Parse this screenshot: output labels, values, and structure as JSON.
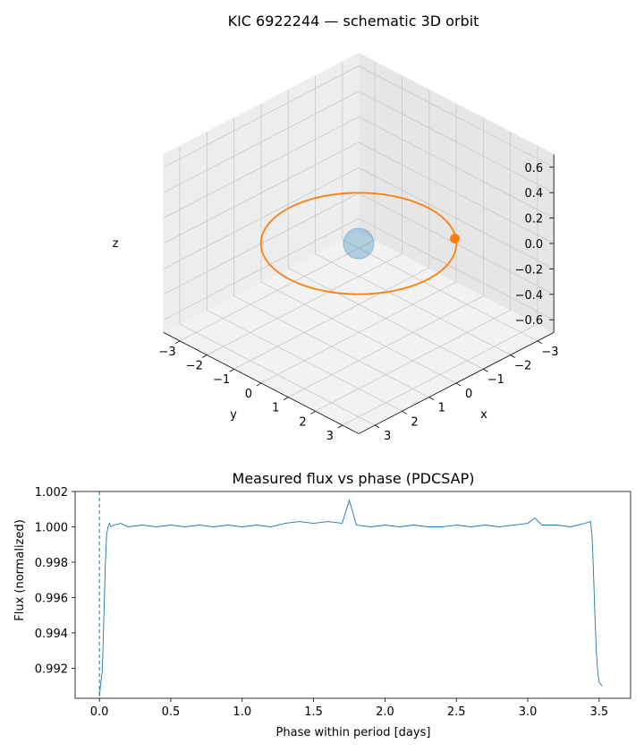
{
  "figure": {
    "title": "KIC 6922244 — schematic 3D orbit"
  },
  "chart_data": [
    {
      "type": "scatter",
      "kind": "3d-orbit",
      "title": "KIC 6922244 — schematic 3D orbit",
      "xlabel": "x",
      "ylabel": "y",
      "zlabel": "z",
      "xlim": [
        -3.6,
        3.6
      ],
      "ylim": [
        -3.6,
        3.6
      ],
      "zlim": [
        -0.7,
        0.7
      ],
      "xticks": [
        "−3",
        "−2",
        "−1",
        "0",
        "1",
        "2",
        "3"
      ],
      "yticks": [
        "−3",
        "−2",
        "−1",
        "0",
        "1",
        "2",
        "3"
      ],
      "zticks": [
        "−0.6",
        "−0.4",
        "−0.2",
        "0.0",
        "0.2",
        "0.4",
        "0.6"
      ],
      "xtick_values": [
        -3,
        -2,
        -1,
        0,
        1,
        2,
        3
      ],
      "ytick_values": [
        -3,
        -2,
        -1,
        0,
        1,
        2,
        3
      ],
      "ztick_values": [
        -0.6,
        -0.4,
        -0.2,
        0.0,
        0.2,
        0.4,
        0.6
      ],
      "orbit": {
        "radius": 2.55,
        "z": 0.0,
        "color": "#ff7f0e"
      },
      "planet": {
        "x": -1.95,
        "y": 1.6,
        "z": 0.0,
        "color": "#ff7f0e"
      },
      "star": {
        "x": 0,
        "y": 0,
        "z": 0,
        "radius": 0.38,
        "color": "#1f77b4"
      },
      "grid": true
    },
    {
      "type": "line",
      "title": "Measured flux vs phase (PDCSAP)",
      "xlabel": "Phase within period [days]",
      "ylabel": "Flux (normalized)",
      "xlim": [
        -0.17,
        3.72
      ],
      "ylim": [
        0.9903,
        1.002
      ],
      "xticks": [
        "0.0",
        "0.5",
        "1.0",
        "1.5",
        "2.0",
        "2.5",
        "3.0",
        "3.5"
      ],
      "xtick_values": [
        0.0,
        0.5,
        1.0,
        1.5,
        2.0,
        2.5,
        3.0,
        3.5
      ],
      "yticks": [
        "0.992",
        "0.994",
        "0.996",
        "0.998",
        "1.000",
        "1.002"
      ],
      "ytick_values": [
        0.992,
        0.994,
        0.996,
        0.998,
        1.0,
        1.002
      ],
      "series": [
        {
          "color": "#1f77b4",
          "x": [
            0.0,
            0.01,
            0.02,
            0.03,
            0.04,
            0.05,
            0.06,
            0.07,
            0.08,
            0.1,
            0.15,
            0.2,
            0.3,
            0.4,
            0.5,
            0.6,
            0.7,
            0.8,
            0.9,
            1.0,
            1.1,
            1.2,
            1.3,
            1.4,
            1.5,
            1.6,
            1.7,
            1.75,
            1.8,
            1.9,
            2.0,
            2.1,
            2.2,
            2.3,
            2.4,
            2.5,
            2.6,
            2.7,
            2.8,
            2.9,
            3.0,
            3.05,
            3.1,
            3.2,
            3.3,
            3.4,
            3.44,
            3.45,
            3.46,
            3.47,
            3.48,
            3.49,
            3.5,
            3.52
          ],
          "y": [
            0.9904,
            0.9912,
            0.9918,
            0.9945,
            0.9975,
            0.9995,
            1.0,
            1.0002,
            1.0,
            1.0001,
            1.0002,
            1.0,
            1.0001,
            1.0,
            1.0001,
            1.0,
            1.0001,
            1.0,
            1.0001,
            1.0,
            1.0001,
            1.0,
            1.0002,
            1.0003,
            1.0002,
            1.0003,
            1.0002,
            1.0015,
            1.0001,
            1.0,
            1.0001,
            1.0,
            1.0001,
            1.0,
            1.0,
            1.0001,
            1.0,
            1.0001,
            1.0,
            1.0001,
            1.0002,
            1.0005,
            1.0001,
            1.0001,
            1.0,
            1.0002,
            1.0003,
            0.9995,
            0.9975,
            0.995,
            0.993,
            0.9918,
            0.9912,
            0.991
          ]
        }
      ],
      "vline": {
        "x": 0.0,
        "style": "dashed",
        "color": "#1f77b4"
      },
      "grid": false
    }
  ]
}
